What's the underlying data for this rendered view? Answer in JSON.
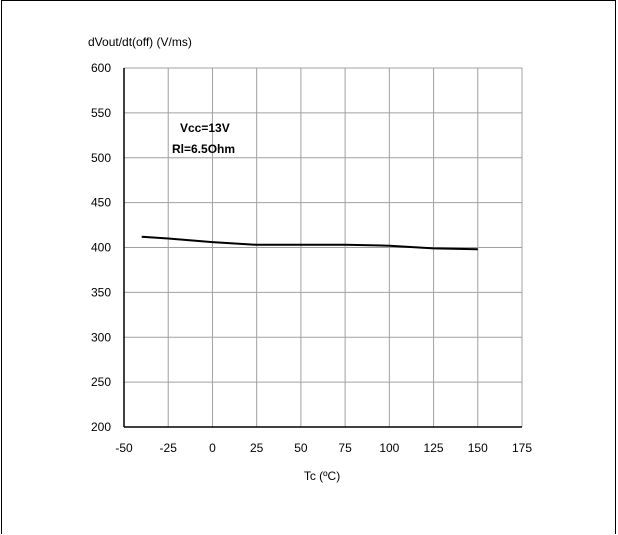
{
  "chart_data": {
    "type": "line",
    "title": "",
    "ylabel": "dVout/dt(off) (V/ms)",
    "xlabel": "Tc (ºC)",
    "xlim": [
      -50,
      175
    ],
    "ylim": [
      200,
      600
    ],
    "xticks": [
      "-50",
      "-25",
      "0",
      "25",
      "50",
      "75",
      "100",
      "125",
      "150",
      "175"
    ],
    "yticks": [
      "200",
      "250",
      "300",
      "350",
      "400",
      "450",
      "500",
      "550",
      "600"
    ],
    "grid": true,
    "annotations": [
      "Vcc=13V",
      "Rl=6.5Ohm"
    ],
    "series": [
      {
        "x": [
          -40,
          -25,
          0,
          25,
          50,
          75,
          100,
          125,
          150
        ],
        "y": [
          412,
          410,
          406,
          403,
          403,
          403,
          402,
          399,
          398
        ]
      }
    ]
  }
}
